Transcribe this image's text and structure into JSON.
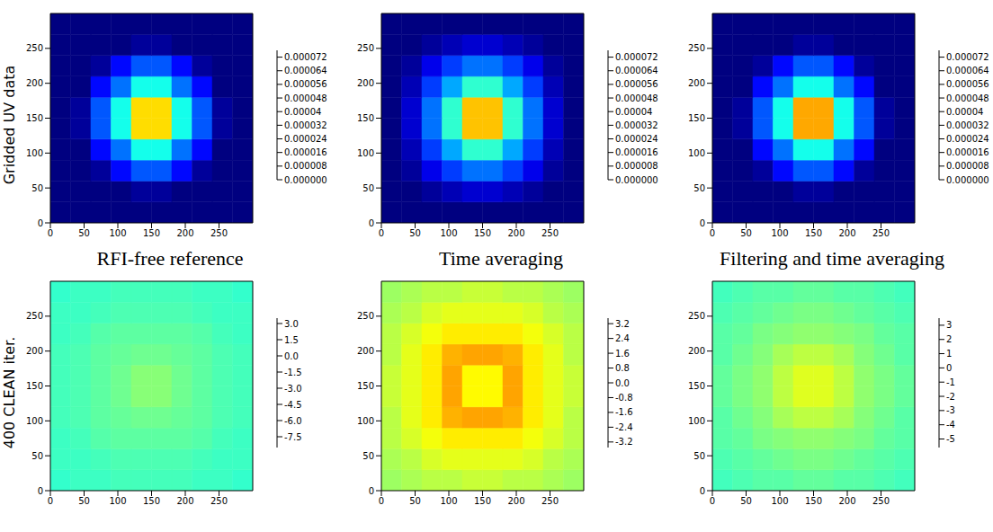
{
  "chart_data": [
    {
      "type": "heatmap",
      "ylabel": "Gridded UV data",
      "xlabel": "RFI-free reference",
      "xlim": [
        0,
        300
      ],
      "ylim": [
        0,
        300
      ],
      "xticks": [
        0,
        50,
        100,
        150,
        200,
        250
      ],
      "yticks": [
        0,
        50,
        100,
        150,
        200,
        250
      ],
      "cells": [
        [
          0,
          0,
          0,
          0,
          0,
          0,
          0,
          0,
          0,
          0
        ],
        [
          0,
          0,
          0,
          0,
          2e-06,
          2e-06,
          0,
          0,
          0,
          0
        ],
        [
          0,
          0,
          2e-06,
          1e-05,
          1.6e-05,
          1.6e-05,
          1e-05,
          2e-06,
          0,
          0
        ],
        [
          0,
          0,
          1e-05,
          1.8e-05,
          3e-05,
          3e-05,
          1.8e-05,
          1e-05,
          0,
          0
        ],
        [
          0,
          2e-06,
          1.6e-05,
          3e-05,
          5e-05,
          5e-05,
          3e-05,
          1.6e-05,
          2e-06,
          0
        ],
        [
          0,
          2e-06,
          1.6e-05,
          3e-05,
          5e-05,
          5e-05,
          3e-05,
          1.6e-05,
          2e-06,
          0
        ],
        [
          0,
          0,
          1e-05,
          1.8e-05,
          3e-05,
          3e-05,
          1.8e-05,
          1e-05,
          0,
          0
        ],
        [
          0,
          0,
          2e-06,
          1e-05,
          1.6e-05,
          1.6e-05,
          1e-05,
          2e-06,
          0,
          0
        ],
        [
          0,
          0,
          0,
          0,
          2e-06,
          2e-06,
          0,
          0,
          0,
          0
        ],
        [
          0,
          0,
          0,
          0,
          0,
          0,
          0,
          0,
          0,
          0
        ]
      ],
      "colorbar": {
        "range": [
          0,
          7.6e-05
        ],
        "ticks": [
          {
            "value": 0,
            "label": "0.000000"
          },
          8e-06,
          1.6e-05,
          2.4e-05,
          3.2e-05,
          4e-05,
          4.8e-05,
          5.6e-05,
          6.4e-05,
          7.2e-05
        ]
      }
    },
    {
      "type": "heatmap",
      "xlabel": "Time averaging",
      "xlim": [
        0,
        300
      ],
      "ylim": [
        0,
        300
      ],
      "xticks": [
        0,
        50,
        100,
        150,
        200,
        250
      ],
      "yticks": [
        0,
        50,
        100,
        150,
        200,
        250
      ],
      "cells": [
        [
          0,
          0,
          0,
          0,
          0,
          0,
          0,
          0,
          0,
          0
        ],
        [
          0,
          0,
          2e-06,
          4e-06,
          6e-06,
          6e-06,
          4e-06,
          2e-06,
          0,
          0
        ],
        [
          0,
          2e-06,
          8e-06,
          1.4e-05,
          1.8e-05,
          1.8e-05,
          1.4e-05,
          8e-06,
          2e-06,
          0
        ],
        [
          0,
          4e-06,
          1.4e-05,
          2.2e-05,
          3.2e-05,
          3.2e-05,
          2.2e-05,
          1.4e-05,
          4e-06,
          0
        ],
        [
          0,
          6e-06,
          1.8e-05,
          3.2e-05,
          5.2e-05,
          5.2e-05,
          3.2e-05,
          1.8e-05,
          6e-06,
          0
        ],
        [
          0,
          6e-06,
          1.8e-05,
          3.2e-05,
          5.2e-05,
          5.2e-05,
          3.2e-05,
          1.8e-05,
          6e-06,
          0
        ],
        [
          0,
          4e-06,
          1.4e-05,
          2.2e-05,
          3.2e-05,
          3.2e-05,
          2.2e-05,
          1.4e-05,
          4e-06,
          0
        ],
        [
          0,
          2e-06,
          8e-06,
          1.4e-05,
          1.8e-05,
          1.8e-05,
          1.4e-05,
          8e-06,
          2e-06,
          0
        ],
        [
          0,
          0,
          2e-06,
          4e-06,
          6e-06,
          6e-06,
          4e-06,
          2e-06,
          0,
          0
        ],
        [
          0,
          0,
          0,
          0,
          0,
          0,
          0,
          0,
          0,
          0
        ]
      ],
      "colorbar": {
        "range": [
          0,
          7.6e-05
        ],
        "ticks": [
          {
            "value": 0,
            "label": "0.000000"
          },
          8e-06,
          1.6e-05,
          2.4e-05,
          3.2e-05,
          4e-05,
          4.8e-05,
          5.6e-05,
          6.4e-05,
          7.2e-05
        ]
      }
    },
    {
      "type": "heatmap",
      "xlabel": "Filtering and time averaging",
      "xlim": [
        0,
        300
      ],
      "ylim": [
        0,
        300
      ],
      "xticks": [
        0,
        50,
        100,
        150,
        200,
        250
      ],
      "yticks": [
        0,
        50,
        100,
        150,
        200,
        250
      ],
      "cells": [
        [
          0,
          0,
          0,
          0,
          0,
          0,
          0,
          0,
          0,
          0
        ],
        [
          0,
          0,
          0,
          0,
          2e-06,
          2e-06,
          0,
          0,
          0,
          0
        ],
        [
          0,
          0,
          2e-06,
          1e-05,
          1.6e-05,
          1.6e-05,
          1e-05,
          2e-06,
          0,
          0
        ],
        [
          0,
          0,
          1e-05,
          1.8e-05,
          3e-05,
          3e-05,
          1.8e-05,
          1e-05,
          0,
          0
        ],
        [
          0,
          2e-06,
          1.6e-05,
          3e-05,
          5.4e-05,
          5.4e-05,
          3e-05,
          1.6e-05,
          2e-06,
          0
        ],
        [
          0,
          2e-06,
          1.6e-05,
          3e-05,
          5.4e-05,
          5.4e-05,
          3e-05,
          1.6e-05,
          2e-06,
          0
        ],
        [
          0,
          0,
          1e-05,
          1.8e-05,
          3e-05,
          3e-05,
          1.8e-05,
          1e-05,
          0,
          0
        ],
        [
          0,
          0,
          2e-06,
          1e-05,
          1.6e-05,
          1.6e-05,
          1e-05,
          2e-06,
          0,
          0
        ],
        [
          0,
          0,
          0,
          0,
          2e-06,
          2e-06,
          0,
          0,
          0,
          0
        ],
        [
          0,
          0,
          0,
          0,
          0,
          0,
          0,
          0,
          0,
          0
        ]
      ],
      "colorbar": {
        "range": [
          0,
          7.6e-05
        ],
        "ticks": [
          {
            "value": 0,
            "label": "0.000000"
          },
          8e-06,
          1.6e-05,
          2.4e-05,
          3.2e-05,
          4e-05,
          4.8e-05,
          5.6e-05,
          6.4e-05,
          7.2e-05
        ]
      }
    },
    {
      "type": "heatmap",
      "ylabel": "400 CLEAN iter.",
      "xlim": [
        0,
        300
      ],
      "ylim": [
        0,
        300
      ],
      "xticks": [
        0,
        50,
        100,
        150,
        200,
        250
      ],
      "yticks": [
        0,
        50,
        100,
        150,
        200,
        250
      ],
      "cells": [
        [
          -3.4,
          -3.3,
          -3.3,
          -3.2,
          -3.2,
          -3.2,
          -3.2,
          -3.3,
          -3.3,
          -3.4
        ],
        [
          -3.3,
          -3.3,
          -3.2,
          -3.1,
          -3.1,
          -3.1,
          -3.1,
          -3.2,
          -3.3,
          -3.3
        ],
        [
          -3.3,
          -3.2,
          -3.0,
          -2.9,
          -2.9,
          -2.9,
          -2.9,
          -3.0,
          -3.2,
          -3.3
        ],
        [
          -3.2,
          -3.1,
          -2.9,
          -2.8,
          -2.7,
          -2.7,
          -2.8,
          -2.9,
          -3.1,
          -3.2
        ],
        [
          -3.2,
          -3.1,
          -2.9,
          -2.7,
          -2.4,
          -2.4,
          -2.7,
          -2.9,
          -3.1,
          -3.2
        ],
        [
          -3.2,
          -3.1,
          -2.9,
          -2.7,
          -2.4,
          -2.4,
          -2.7,
          -2.9,
          -3.1,
          -3.2
        ],
        [
          -3.2,
          -3.1,
          -2.9,
          -2.8,
          -2.7,
          -2.7,
          -2.8,
          -2.9,
          -3.1,
          -3.2
        ],
        [
          -3.3,
          -3.2,
          -3.0,
          -2.9,
          -2.9,
          -2.9,
          -2.9,
          -3.0,
          -3.2,
          -3.3
        ],
        [
          -3.3,
          -3.3,
          -3.2,
          -3.1,
          -3.1,
          -3.1,
          -3.1,
          -3.2,
          -3.3,
          -3.3
        ],
        [
          -3.4,
          -3.3,
          -3.3,
          -3.2,
          -3.2,
          -3.2,
          -3.2,
          -3.3,
          -3.3,
          -3.4
        ]
      ],
      "colorbar": {
        "range": [
          -8.5,
          3.5
        ],
        "ticks": [
          {
            "value": 3,
            "label": "3.0"
          },
          1.5,
          {
            "value": 0,
            "label": "0.0"
          },
          -1.5,
          {
            "value": -3,
            "label": "-3.0"
          },
          -4.5,
          {
            "value": -6,
            "label": "-6.0"
          },
          -7.5
        ]
      }
    },
    {
      "type": "heatmap",
      "xlim": [
        0,
        300
      ],
      "ylim": [
        0,
        300
      ],
      "xticks": [
        0,
        50,
        100,
        150,
        200,
        250
      ],
      "yticks": [
        0,
        50,
        100,
        150,
        200,
        250
      ],
      "cells": [
        [
          0.2,
          0.3,
          0.4,
          0.4,
          0.5,
          0.5,
          0.4,
          0.4,
          0.3,
          0.2
        ],
        [
          0.3,
          0.4,
          0.6,
          0.7,
          0.7,
          0.7,
          0.7,
          0.6,
          0.4,
          0.3
        ],
        [
          0.4,
          0.6,
          0.8,
          1.0,
          1.0,
          1.0,
          1.0,
          0.8,
          0.6,
          0.4
        ],
        [
          0.4,
          0.7,
          1.0,
          1.4,
          1.5,
          1.5,
          1.4,
          1.0,
          0.7,
          0.4
        ],
        [
          0.5,
          0.7,
          1.0,
          1.5,
          0.9,
          0.9,
          1.5,
          1.0,
          0.7,
          0.5
        ],
        [
          0.5,
          0.7,
          1.0,
          1.5,
          0.9,
          0.9,
          1.5,
          1.0,
          0.7,
          0.5
        ],
        [
          0.4,
          0.7,
          1.0,
          1.4,
          1.5,
          1.5,
          1.4,
          1.0,
          0.7,
          0.4
        ],
        [
          0.4,
          0.6,
          0.8,
          1.0,
          1.0,
          1.0,
          1.0,
          0.8,
          0.6,
          0.4
        ],
        [
          0.3,
          0.4,
          0.6,
          0.7,
          0.7,
          0.7,
          0.7,
          0.6,
          0.4,
          0.3
        ],
        [
          0.2,
          0.3,
          0.4,
          0.4,
          0.5,
          0.5,
          0.4,
          0.4,
          0.3,
          0.2
        ]
      ],
      "colorbar": {
        "range": [
          -3.5,
          3.5
        ],
        "ticks": [
          3.2,
          2.4,
          1.6,
          0.8,
          {
            "value": 0,
            "label": "0.0"
          },
          -0.8,
          -1.6,
          -2.4,
          -3.2
        ]
      }
    },
    {
      "type": "heatmap",
      "xlim": [
        0,
        300
      ],
      "ylim": [
        0,
        300
      ],
      "xticks": [
        0,
        50,
        100,
        150,
        200,
        250
      ],
      "yticks": [
        0,
        50,
        100,
        150,
        200,
        250
      ],
      "cells": [
        [
          -1.6,
          -1.5,
          -1.4,
          -1.4,
          -1.3,
          -1.3,
          -1.4,
          -1.4,
          -1.5,
          -1.6
        ],
        [
          -1.5,
          -1.4,
          -1.3,
          -1.2,
          -1.1,
          -1.1,
          -1.2,
          -1.3,
          -1.4,
          -1.5
        ],
        [
          -1.4,
          -1.3,
          -1.1,
          -1.0,
          -0.9,
          -0.9,
          -1.0,
          -1.1,
          -1.3,
          -1.4
        ],
        [
          -1.4,
          -1.2,
          -1.0,
          -0.7,
          -0.5,
          -0.5,
          -0.7,
          -1.0,
          -1.2,
          -1.4
        ],
        [
          -1.3,
          -1.1,
          -0.9,
          -0.5,
          -0.2,
          -0.2,
          -0.5,
          -0.9,
          -1.1,
          -1.3
        ],
        [
          -1.3,
          -1.1,
          -0.9,
          -0.5,
          -0.2,
          -0.2,
          -0.5,
          -0.9,
          -1.1,
          -1.3
        ],
        [
          -1.4,
          -1.2,
          -1.0,
          -0.7,
          -0.5,
          -0.5,
          -0.7,
          -1.0,
          -1.2,
          -1.4
        ],
        [
          -1.4,
          -1.3,
          -1.1,
          -1.0,
          -0.9,
          -0.9,
          -1.0,
          -1.1,
          -1.3,
          -1.4
        ],
        [
          -1.5,
          -1.4,
          -1.3,
          -1.2,
          -1.1,
          -1.1,
          -1.2,
          -1.3,
          -1.4,
          -1.5
        ],
        [
          -1.6,
          -1.5,
          -1.4,
          -1.4,
          -1.3,
          -1.3,
          -1.4,
          -1.4,
          -1.5,
          -1.6
        ]
      ],
      "colorbar": {
        "range": [
          -5.6,
          3.5
        ],
        "ticks": [
          3,
          2,
          1,
          0,
          -1,
          -2,
          -3,
          -4,
          -5
        ]
      }
    }
  ]
}
